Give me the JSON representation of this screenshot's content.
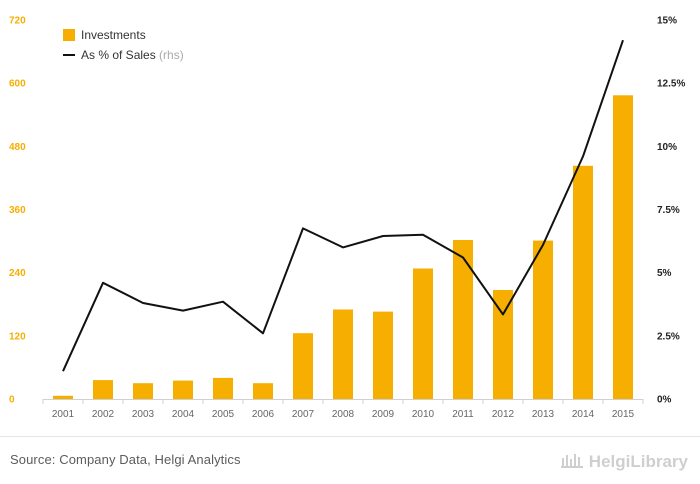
{
  "chart_data": {
    "type": "bar",
    "categories": [
      "2001",
      "2002",
      "2003",
      "2004",
      "2005",
      "2006",
      "2007",
      "2008",
      "2009",
      "2010",
      "2011",
      "2012",
      "2013",
      "2014",
      "2015"
    ],
    "series": [
      {
        "name": "Investments",
        "kind": "bar",
        "axis": "left",
        "color": "#f6ae00",
        "values": [
          6,
          36,
          30,
          35,
          40,
          30,
          125,
          170,
          166,
          248,
          302,
          207,
          301,
          443,
          577
        ]
      },
      {
        "name": "As % of Sales",
        "name_suffix": "(rhs)",
        "kind": "line",
        "axis": "right",
        "color": "#111111",
        "values": [
          1.1,
          4.6,
          3.8,
          3.5,
          3.85,
          2.6,
          6.75,
          6.0,
          6.45,
          6.5,
          5.6,
          3.35,
          6.1,
          9.6,
          14.2
        ]
      }
    ],
    "left_axis": {
      "min": 0,
      "max": 720,
      "ticks": [
        0,
        120,
        240,
        360,
        480,
        600,
        720
      ],
      "tick_labels": [
        "0",
        "120",
        "240",
        "360",
        "480",
        "600",
        "720"
      ],
      "color": "#f6ae00"
    },
    "right_axis": {
      "min": 0,
      "max": 15,
      "ticks": [
        0,
        2.5,
        5,
        7.5,
        10,
        12.5,
        15
      ],
      "tick_labels": [
        "0%",
        "2.5%",
        "5%",
        "7.5%",
        "10%",
        "12.5%",
        "15%"
      ]
    },
    "title": "",
    "xlabel": "",
    "ylabel": "",
    "legend": "top-left",
    "grid": false
  },
  "footer": {
    "source": "Source: Company Data, Helgi Analytics",
    "brand": "HelgiLibrary"
  }
}
